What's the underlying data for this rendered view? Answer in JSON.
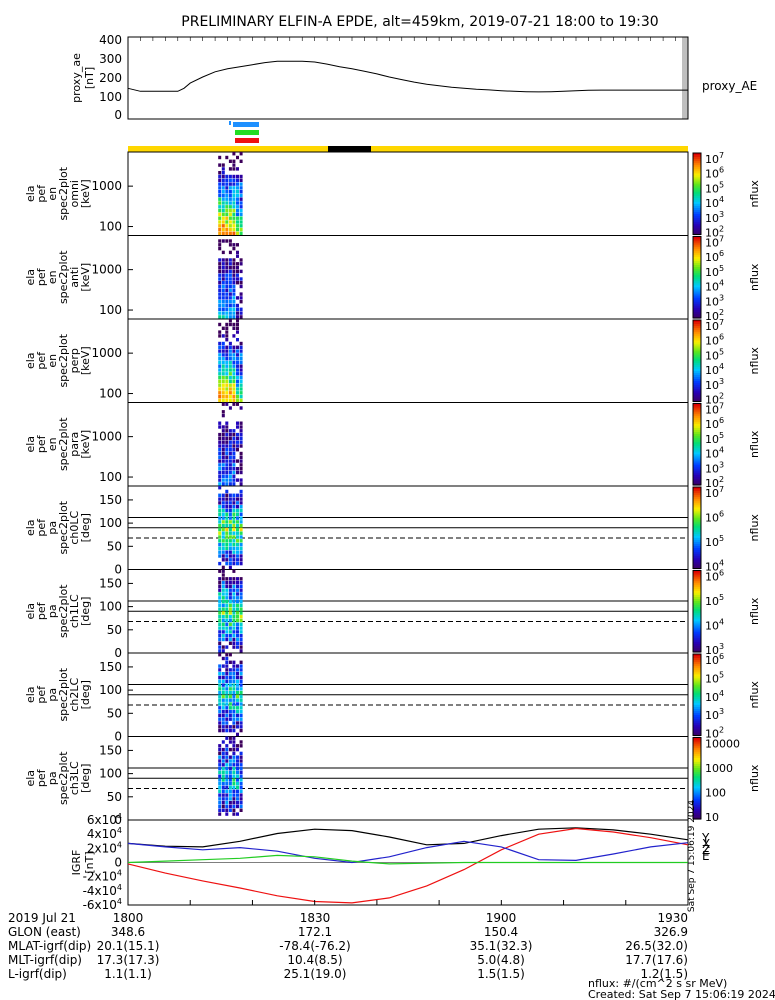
{
  "title": "PRELIMINARY ELFIN-A EPDE, alt=459km, 2019-07-21 18:00 to 19:30",
  "time_range": {
    "start_min": 0,
    "end_min": 90,
    "start_label": "2019-07-21 18:00",
    "end_label": "19:30"
  },
  "colors": {
    "ae_line": "#000000",
    "bar_yellow": "#ffd700",
    "bar_black": "#000000",
    "marker_blue": "#1e90ff",
    "marker_green": "#22dd22",
    "marker_red": "#ee1111",
    "igrf_x": "#ee1111",
    "igrf_y": "#2222cc",
    "igrf_z": "#000000",
    "igrf_e": "#22cc22"
  },
  "chart_data": [
    {
      "name": "proxy_ae",
      "type": "line",
      "ylabel": "proxy_ae",
      "units": "[nT]",
      "legend": "proxy_AE",
      "ylim": [
        0,
        400
      ],
      "yticks": [
        "400",
        "300",
        "200",
        "100",
        "0"
      ],
      "x_minutes": [
        0,
        2,
        4,
        8,
        9,
        10,
        12,
        14,
        16,
        18,
        20,
        22,
        24,
        26,
        28,
        30,
        32,
        34,
        36,
        38,
        40,
        42,
        44,
        46,
        48,
        50,
        52,
        54,
        56,
        58,
        60,
        62,
        64,
        66,
        68,
        70,
        72,
        74,
        76,
        78,
        80,
        82,
        84,
        86,
        88,
        90
      ],
      "values": [
        150,
        135,
        135,
        135,
        150,
        175,
        205,
        230,
        245,
        255,
        265,
        275,
        282,
        282,
        282,
        278,
        268,
        255,
        245,
        233,
        220,
        205,
        192,
        180,
        170,
        162,
        155,
        150,
        145,
        142,
        138,
        135,
        133,
        132,
        133,
        135,
        138,
        140,
        141,
        141,
        141,
        141,
        141,
        141,
        141,
        141
      ]
    },
    {
      "name": "ela pef en spec2plot omni",
      "type": "heatmap",
      "ylabel": [
        "ela",
        "pef",
        "en",
        "spec2plot",
        "omni",
        "[keV]"
      ],
      "yscale": "log",
      "ylim": [
        60,
        7000
      ],
      "yticks": [
        "1000",
        "100"
      ],
      "x_minutes": [
        14.5,
        18.5
      ],
      "colorbar": {
        "label": "nflux",
        "scale": "log",
        "min": 100,
        "max": 10000000,
        "ticks": [
          "10^7",
          "10^6",
          "10^5",
          "10^4",
          "10^3",
          "10^2"
        ]
      }
    },
    {
      "name": "ela pef en spec2plot anti",
      "type": "heatmap",
      "ylabel": [
        "ela",
        "pef",
        "en",
        "spec2plot",
        "anti",
        "[keV]"
      ],
      "yscale": "log",
      "ylim": [
        60,
        7000
      ],
      "yticks": [
        "1000",
        "100"
      ],
      "x_minutes": [
        14.5,
        18.5
      ],
      "colorbar": {
        "label": "nflux",
        "scale": "log",
        "min": 100,
        "max": 10000000,
        "ticks": [
          "10^7",
          "10^6",
          "10^5",
          "10^4",
          "10^3",
          "10^2"
        ]
      }
    },
    {
      "name": "ela pef en spec2plot perp",
      "type": "heatmap",
      "ylabel": [
        "ela",
        "pef",
        "en",
        "spec2plot",
        "perp",
        "[keV]"
      ],
      "yscale": "log",
      "ylim": [
        60,
        7000
      ],
      "yticks": [
        "1000",
        "100"
      ],
      "x_minutes": [
        14.5,
        18.5
      ],
      "colorbar": {
        "label": "nflux",
        "scale": "log",
        "min": 100,
        "max": 10000000,
        "ticks": [
          "10^7",
          "10^6",
          "10^5",
          "10^4",
          "10^3",
          "10^2"
        ]
      }
    },
    {
      "name": "ela pef en spec2plot para",
      "type": "heatmap",
      "ylabel": [
        "ela",
        "pef",
        "en",
        "spec2plot",
        "para",
        "[keV]"
      ],
      "yscale": "log",
      "ylim": [
        60,
        7000
      ],
      "yticks": [
        "1000",
        "100"
      ],
      "x_minutes": [
        14.5,
        18.5
      ],
      "colorbar": {
        "label": "nflux",
        "scale": "log",
        "min": 100,
        "max": 10000000,
        "ticks": [
          "10^7",
          "10^6",
          "10^5",
          "10^4",
          "10^3",
          "10^2"
        ]
      }
    },
    {
      "name": "ela pef pa spec2plot ch0LC",
      "type": "heatmap",
      "ylabel": [
        "ela",
        "pef",
        "pa",
        "spec2plot",
        "ch0LC",
        "[deg]"
      ],
      "ylim": [
        0,
        180
      ],
      "yticks": [
        "150",
        "100",
        "50",
        "0"
      ],
      "reference_lines": {
        "solid": [
          90,
          112
        ],
        "dashed": [
          68
        ]
      },
      "x_minutes": [
        14.5,
        18.5
      ],
      "colorbar": {
        "label": "nflux",
        "scale": "log",
        "min": 10000,
        "max": 10000000,
        "ticks": [
          "10^7",
          "10^6",
          "10^5",
          "10^4"
        ]
      }
    },
    {
      "name": "ela pef pa spec2plot ch1LC",
      "type": "heatmap",
      "ylabel": [
        "ela",
        "pef",
        "pa",
        "spec2plot",
        "ch1LC",
        "[deg]"
      ],
      "ylim": [
        0,
        180
      ],
      "yticks": [
        "150",
        "100",
        "50",
        "0"
      ],
      "reference_lines": {
        "solid": [
          90,
          112
        ],
        "dashed": [
          68
        ]
      },
      "x_minutes": [
        14.5,
        18.5
      ],
      "colorbar": {
        "label": "nflux",
        "scale": "log",
        "min": 1000,
        "max": 1000000,
        "ticks": [
          "10^6",
          "10^5",
          "10^4",
          "10^3"
        ]
      }
    },
    {
      "name": "ela pef pa spec2plot ch2LC",
      "type": "heatmap",
      "ylabel": [
        "ela",
        "pef",
        "pa",
        "spec2plot",
        "ch2LC",
        "[deg]"
      ],
      "ylim": [
        0,
        180
      ],
      "yticks": [
        "150",
        "100",
        "50",
        "0"
      ],
      "reference_lines": {
        "solid": [
          90,
          112
        ],
        "dashed": [
          68
        ]
      },
      "x_minutes": [
        14.5,
        18.5
      ],
      "colorbar": {
        "label": "nflux",
        "scale": "log",
        "min": 100,
        "max": 1000000,
        "ticks": [
          "10^6",
          "10^5",
          "10^4",
          "10^3",
          "10^2"
        ]
      }
    },
    {
      "name": "ela pef pa spec2plot ch3LC",
      "type": "heatmap",
      "ylabel": [
        "ela",
        "pef",
        "pa",
        "spec2plot",
        "ch3LC",
        "[deg]"
      ],
      "ylim": [
        0,
        180
      ],
      "yticks": [
        "150",
        "100",
        "50",
        "0"
      ],
      "reference_lines": {
        "solid": [
          90,
          112
        ],
        "dashed": [
          68
        ]
      },
      "x_minutes": [
        14.5,
        18.5
      ],
      "colorbar": {
        "label": "nflux",
        "scale": "log",
        "min": 10,
        "max": 10000,
        "ticks": [
          "10000",
          "1000",
          "100",
          "10"
        ]
      }
    },
    {
      "name": "IGRF",
      "type": "line",
      "ylabel": "IGRF",
      "units": "[nT]",
      "ylim": [
        -60000,
        60000
      ],
      "yticks": [
        "6x10^4",
        "4x10^4",
        "2x10^4",
        "0",
        "-2x10^4",
        "-4x10^4",
        "-6x10^4"
      ],
      "legend": [
        "Y",
        "X",
        "Z",
        "E"
      ],
      "x_minutes": [
        0,
        6,
        12,
        18,
        24,
        30,
        36,
        42,
        48,
        54,
        60,
        66,
        72,
        78,
        84,
        90
      ],
      "series": [
        {
          "name": "Z",
          "values": [
            27000,
            23000,
            22000,
            30000,
            41000,
            47000,
            45000,
            36000,
            25000,
            27000,
            38000,
            47000,
            49000,
            46000,
            40000,
            32000
          ]
        },
        {
          "name": "X",
          "values": [
            -2000,
            -15000,
            -26000,
            -36000,
            -47000,
            -55000,
            -57000,
            -50000,
            -33000,
            -10000,
            18000,
            40000,
            48000,
            43000,
            35000,
            25000
          ]
        },
        {
          "name": "Y",
          "values": [
            27000,
            22000,
            18000,
            21000,
            16000,
            6000,
            0,
            8000,
            21000,
            30000,
            22000,
            4000,
            3000,
            12000,
            22000,
            28000
          ]
        },
        {
          "name": "E",
          "values": [
            0,
            2000,
            4000,
            6000,
            10000,
            8000,
            2000,
            -2000,
            -1000,
            0,
            0,
            0,
            0,
            0,
            0,
            0
          ]
        }
      ]
    }
  ],
  "footer": {
    "rows": [
      {
        "label": "2019 Jul 21",
        "v1800": "1800",
        "v1830": "1830",
        "v1900": "1900",
        "v1930": "1930"
      },
      {
        "label": "GLON (east)",
        "v1800": "348.6",
        "v1830": "172.1",
        "v1900": "150.4",
        "v1930": "326.9"
      },
      {
        "label": "MLAT-igrf(dip)",
        "v1800": "20.1(15.1)",
        "v1830": "-78.4(-76.2)",
        "v1900": "35.1(32.3)",
        "v1930": "26.5(32.0)"
      },
      {
        "label": "MLT-igrf(dip)",
        "v1800": "17.3(17.3)",
        "v1830": "10.4(8.5)",
        "v1900": "5.0(4.8)",
        "v1930": "17.7(17.6)"
      },
      {
        "label": "L-igrf(dip)",
        "v1800": "1.1(1.1)",
        "v1830": "25.1(19.0)",
        "v1900": "1.5(1.5)",
        "v1930": "1.2(1.5)"
      }
    ],
    "units_note": "nflux: #/(cm^2 s sr MeV)",
    "created": "Created: Sat Sep  7 15:06:19 2024",
    "side_stamp": "Sat Sep  7 15:06:19 2024"
  }
}
